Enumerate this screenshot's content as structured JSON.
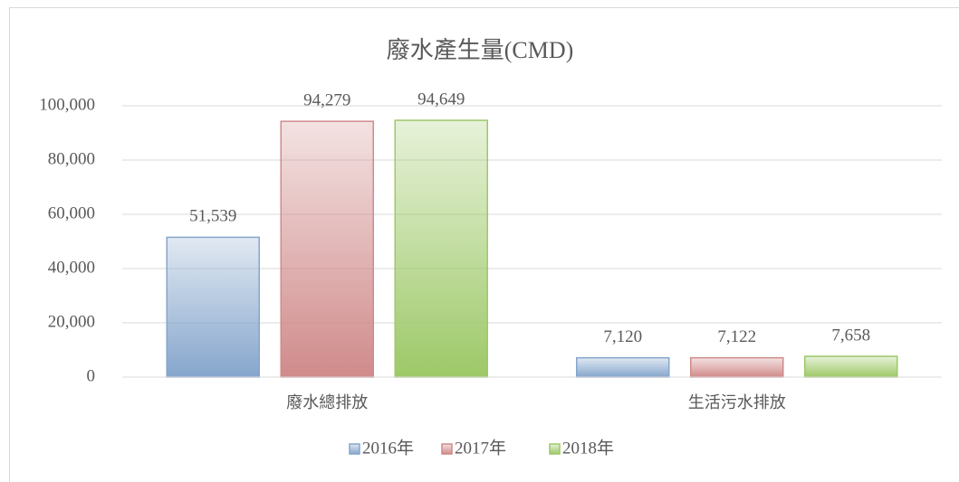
{
  "chart_data": {
    "type": "bar",
    "title": "廢水產生量(CMD)",
    "categories": [
      "廢水總排放",
      "生活污水排放"
    ],
    "series": [
      {
        "name": "2016年",
        "color": "#9dc3f0",
        "values": [
          51539,
          7120
        ],
        "value_labels": [
          "51,539",
          "7,120"
        ]
      },
      {
        "name": "2017年",
        "color": "#f5a3a3",
        "values": [
          94279,
          7122
        ],
        "value_labels": [
          "94,279",
          "7,122"
        ]
      },
      {
        "name": "2018年",
        "color": "#b9ec7a",
        "values": [
          94649,
          7658
        ],
        "value_labels": [
          "94,649",
          "7,658"
        ]
      }
    ],
    "ylim": [
      0,
      100000
    ],
    "yticks": [
      0,
      {
        "value": 20000,
        "label": "20,000"
      },
      {
        "value": 40000,
        "label": "40,000"
      },
      {
        "value": 60000,
        "label": "60,000"
      },
      {
        "value": 80000,
        "label": "80,000"
      },
      {
        "value": 100000,
        "label": "100,000"
      }
    ],
    "grid": true,
    "legend": "bottom"
  }
}
